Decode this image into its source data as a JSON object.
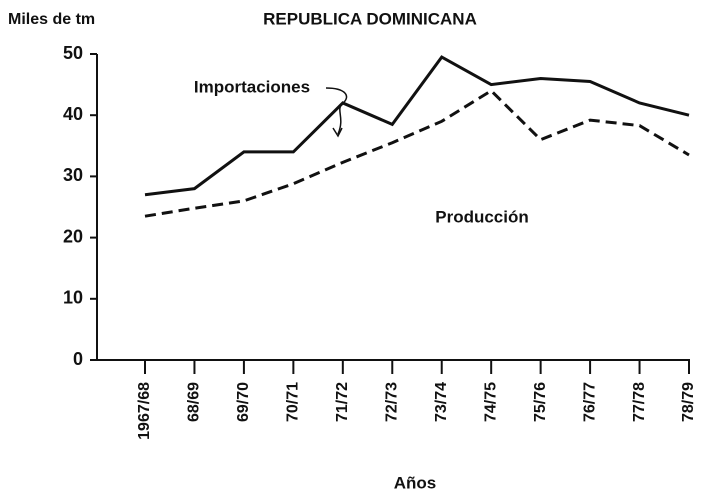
{
  "chart_data": {
    "type": "line",
    "title": "REPUBLICA DOMINICANA",
    "y_label": "Miles de tm",
    "x_label": "Años",
    "categories": [
      "1967/68",
      "68/69",
      "69/70",
      "70/71",
      "71/72",
      "72/73",
      "73/74",
      "74/75",
      "75/76",
      "76/77",
      "77/78",
      "78/79"
    ],
    "series": [
      {
        "name": "Producción",
        "color": "#111111",
        "dashed": false,
        "values": [
          27,
          28,
          34,
          34,
          42,
          38.5,
          49.5,
          45,
          46,
          45.5,
          42,
          40
        ]
      },
      {
        "name": "Importaciones",
        "color": "#111111",
        "dashed": true,
        "values": [
          23.5,
          24.8,
          26,
          28.8,
          32.3,
          35.5,
          39,
          44,
          36,
          39.2,
          38.3,
          33.5
        ]
      }
    ],
    "ylim": [
      0,
      50
    ],
    "yticks": [
      0,
      10,
      20,
      30,
      40,
      50
    ],
    "grid": false
  }
}
